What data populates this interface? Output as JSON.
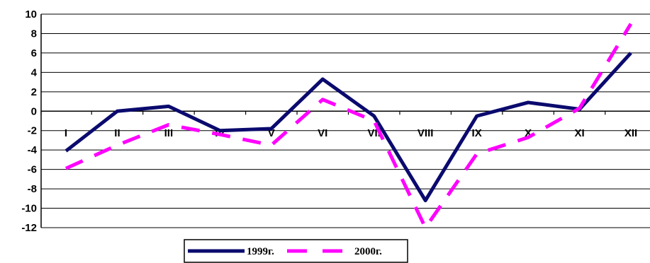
{
  "chart_data": {
    "type": "line",
    "categories": [
      "I",
      "II",
      "III",
      "IV",
      "V",
      "VI",
      "VII",
      "VIII",
      "IX",
      "X",
      "XI",
      "XII"
    ],
    "series": [
      {
        "name": "1999г.",
        "values": [
          -4.1,
          0.0,
          0.5,
          -2.0,
          -1.8,
          3.3,
          -0.5,
          -9.2,
          -0.5,
          0.9,
          0.2,
          6.0
        ],
        "color": "#0a0a6e",
        "style": "solid"
      },
      {
        "name": "2000г.",
        "values": [
          -5.9,
          -3.5,
          -1.4,
          -2.4,
          -3.5,
          1.2,
          -1.0,
          -12.0,
          -4.4,
          -2.7,
          0.3,
          9.0
        ],
        "color": "#ff00ff",
        "style": "dashed"
      }
    ],
    "yticks": [
      "10",
      "8",
      "6",
      "4",
      "2",
      "0",
      "-2",
      "-4",
      "-6",
      "-8",
      "-10",
      "-12"
    ],
    "ylim": [
      -12,
      10
    ],
    "ystep": 2,
    "grid": true,
    "legend": "bottom"
  }
}
